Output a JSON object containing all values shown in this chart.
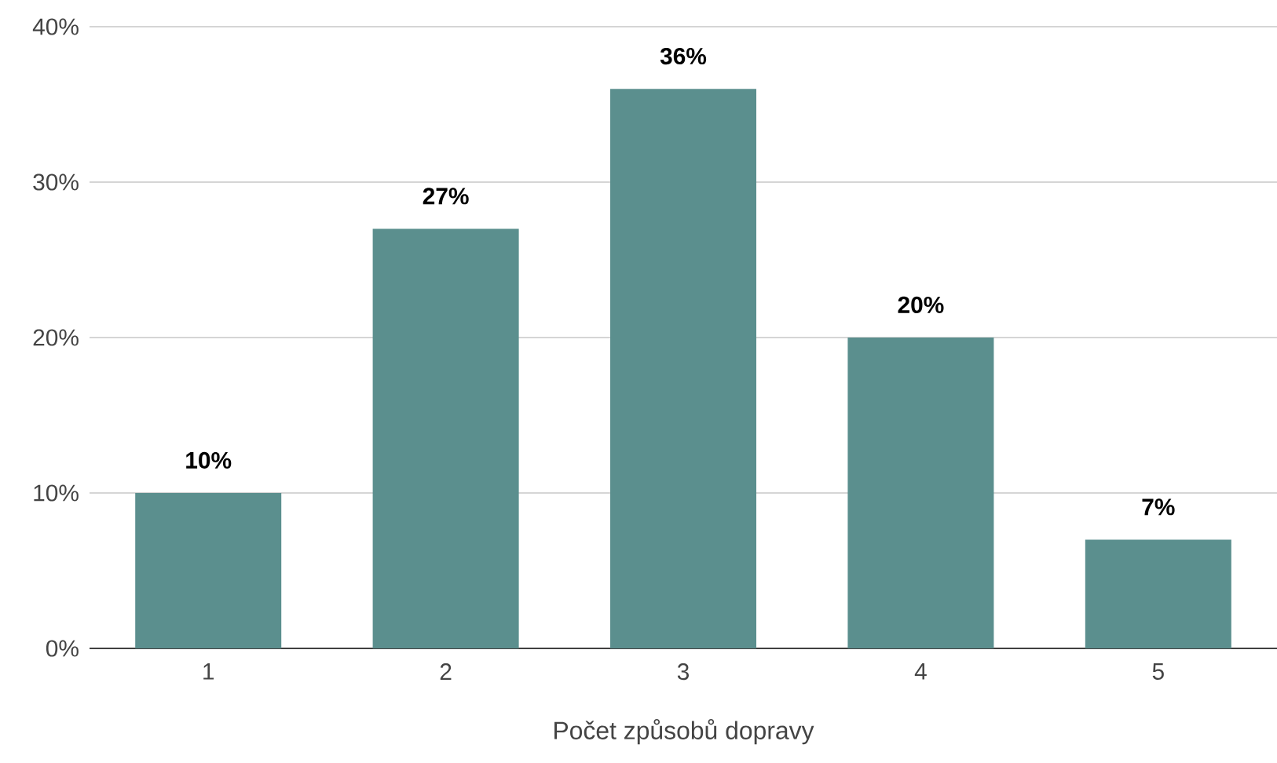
{
  "chart_data": {
    "type": "bar",
    "categories": [
      "1",
      "2",
      "3",
      "4",
      "5"
    ],
    "values": [
      10,
      27,
      36,
      20,
      7
    ],
    "color": "#5b8f8e",
    "xlabel": "Počet způsobů dopravy",
    "ylim": [
      0,
      40
    ],
    "yticks": [
      {
        "value": 0,
        "label": "0%"
      },
      {
        "value": 10,
        "label": "10%"
      },
      {
        "value": 20,
        "label": "20%"
      },
      {
        "value": 30,
        "label": "30%"
      },
      {
        "value": 40,
        "label": "40%"
      }
    ],
    "data_labels": true,
    "value_labels": [
      "10%",
      "27%",
      "36%",
      "20%",
      "7%"
    ],
    "grid": "y"
  }
}
